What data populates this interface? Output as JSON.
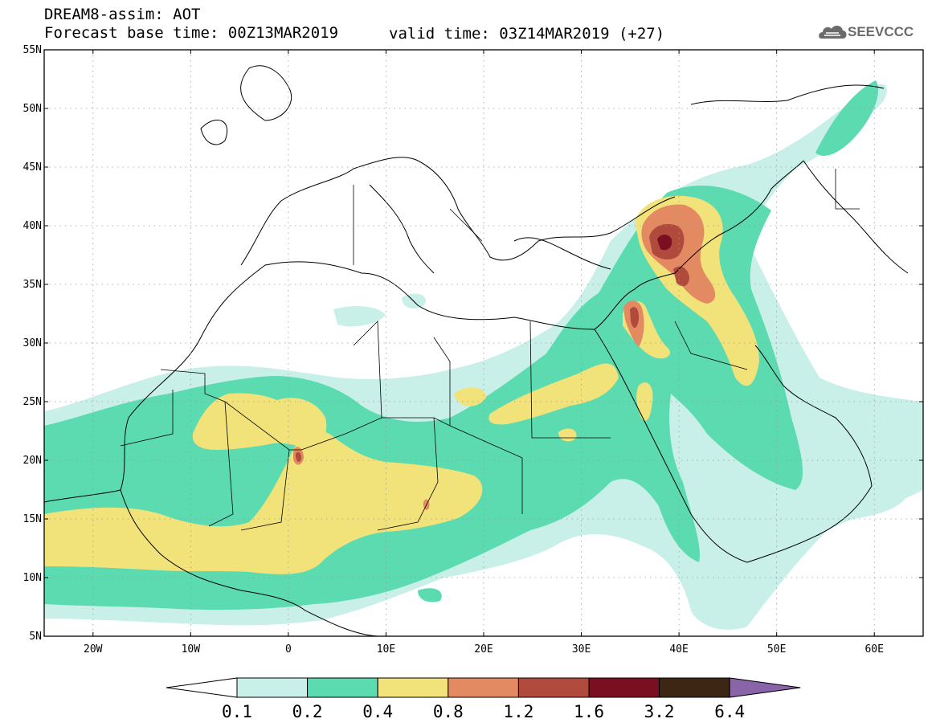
{
  "header": {
    "product": "DREAM8-assim: AOT",
    "base_time": "Forecast base time: 00Z13MAR2019",
    "valid_time": "valid time: 03Z14MAR2019 (+27)"
  },
  "logo": {
    "text": "SEEVCCC",
    "icon": "cloud-icon"
  },
  "axes": {
    "lon_labels": [
      "20W",
      "10W",
      "0",
      "10E",
      "20E",
      "30E",
      "40E",
      "50E",
      "60E"
    ],
    "lon_values": [
      -20,
      -10,
      0,
      10,
      20,
      30,
      40,
      50,
      60
    ],
    "lat_labels": [
      "55N",
      "50N",
      "45N",
      "40N",
      "35N",
      "30N",
      "25N",
      "20N",
      "15N",
      "10N",
      "5N"
    ],
    "lat_values": [
      55,
      50,
      45,
      40,
      35,
      30,
      25,
      20,
      15,
      10,
      5
    ],
    "lon_range": [
      -25,
      65
    ],
    "lat_range": [
      5,
      55
    ]
  },
  "colorbar": {
    "labels": [
      "0.1",
      "0.2",
      "0.4",
      "0.8",
      "1.2",
      "1.6",
      "3.2",
      "6.4"
    ],
    "colors": [
      "#c8f0e8",
      "#5ddbb0",
      "#f2e27a",
      "#e48a62",
      "#b04a3c",
      "#7a0f22",
      "#3d2614",
      "#8a64a8"
    ]
  },
  "legend_colors": {
    "c01": "#c8f0e8",
    "c02": "#5ddbb0",
    "c04": "#f2e27a",
    "c08": "#e48a62",
    "c12": "#b04a3c",
    "c16": "#7a0f22"
  }
}
